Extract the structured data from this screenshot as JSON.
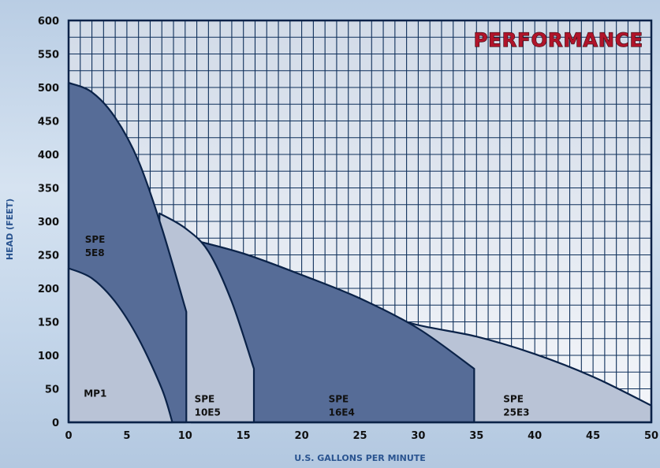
{
  "chart_data": {
    "type": "area",
    "title": "PERFORMANCE",
    "xlabel": "U.S. GALLONS PER MINUTE",
    "ylabel": "HEAD (FEET)",
    "xlim": [
      0,
      50
    ],
    "ylim": [
      0,
      600
    ],
    "xticks": [
      0,
      5,
      10,
      15,
      20,
      25,
      30,
      35,
      40,
      45,
      50
    ],
    "yticks": [
      0,
      50,
      100,
      150,
      200,
      250,
      300,
      350,
      400,
      450,
      500,
      550,
      600
    ],
    "grid": true,
    "series": [
      {
        "name": "SPE 25E3",
        "label_lines": [
          "SPE",
          "25E3"
        ],
        "color": "#b9c3d6",
        "curve": [
          [
            10.5,
            273
          ],
          [
            15,
            252
          ],
          [
            20,
            220
          ],
          [
            25,
            185
          ],
          [
            29,
            150
          ],
          [
            35,
            128
          ],
          [
            40,
            102
          ],
          [
            45,
            68
          ],
          [
            50,
            25
          ]
        ],
        "label_pos": [
          37.3,
          30
        ]
      },
      {
        "name": "SPE 16E4",
        "label_lines": [
          "SPE",
          "16E4"
        ],
        "color": "#566c97",
        "curve": [
          [
            10.5,
            273
          ],
          [
            15,
            252
          ],
          [
            20,
            220
          ],
          [
            25,
            185
          ],
          [
            30,
            140
          ],
          [
            34.8,
            80
          ]
        ],
        "label_pos": [
          22.3,
          30
        ]
      },
      {
        "name": "SPE 10E5",
        "label_lines": [
          "SPE",
          "10E5"
        ],
        "color": "#b9c3d6",
        "curve": [
          [
            7.8,
            312
          ],
          [
            10,
            290
          ],
          [
            12,
            255
          ],
          [
            14,
            180
          ],
          [
            15.9,
            80
          ]
        ],
        "label_pos": [
          10.8,
          30
        ]
      },
      {
        "name": "SPE 5E8",
        "label_lines": [
          "SPE",
          "5E8"
        ],
        "color": "#566c97",
        "curve": [
          [
            0,
            507
          ],
          [
            2,
            493
          ],
          [
            4,
            455
          ],
          [
            6,
            390
          ],
          [
            8,
            290
          ],
          [
            10.1,
            165
          ]
        ],
        "label_pos": [
          1.4,
          268
        ]
      },
      {
        "name": "MP1",
        "label_lines": [
          "MP1"
        ],
        "color": "#b9c3d6",
        "curve": [
          [
            0,
            230
          ],
          [
            2,
            215
          ],
          [
            4,
            180
          ],
          [
            6,
            125
          ],
          [
            8,
            50
          ],
          [
            8.9,
            0
          ]
        ],
        "label_pos": [
          1.3,
          38
        ]
      }
    ]
  }
}
